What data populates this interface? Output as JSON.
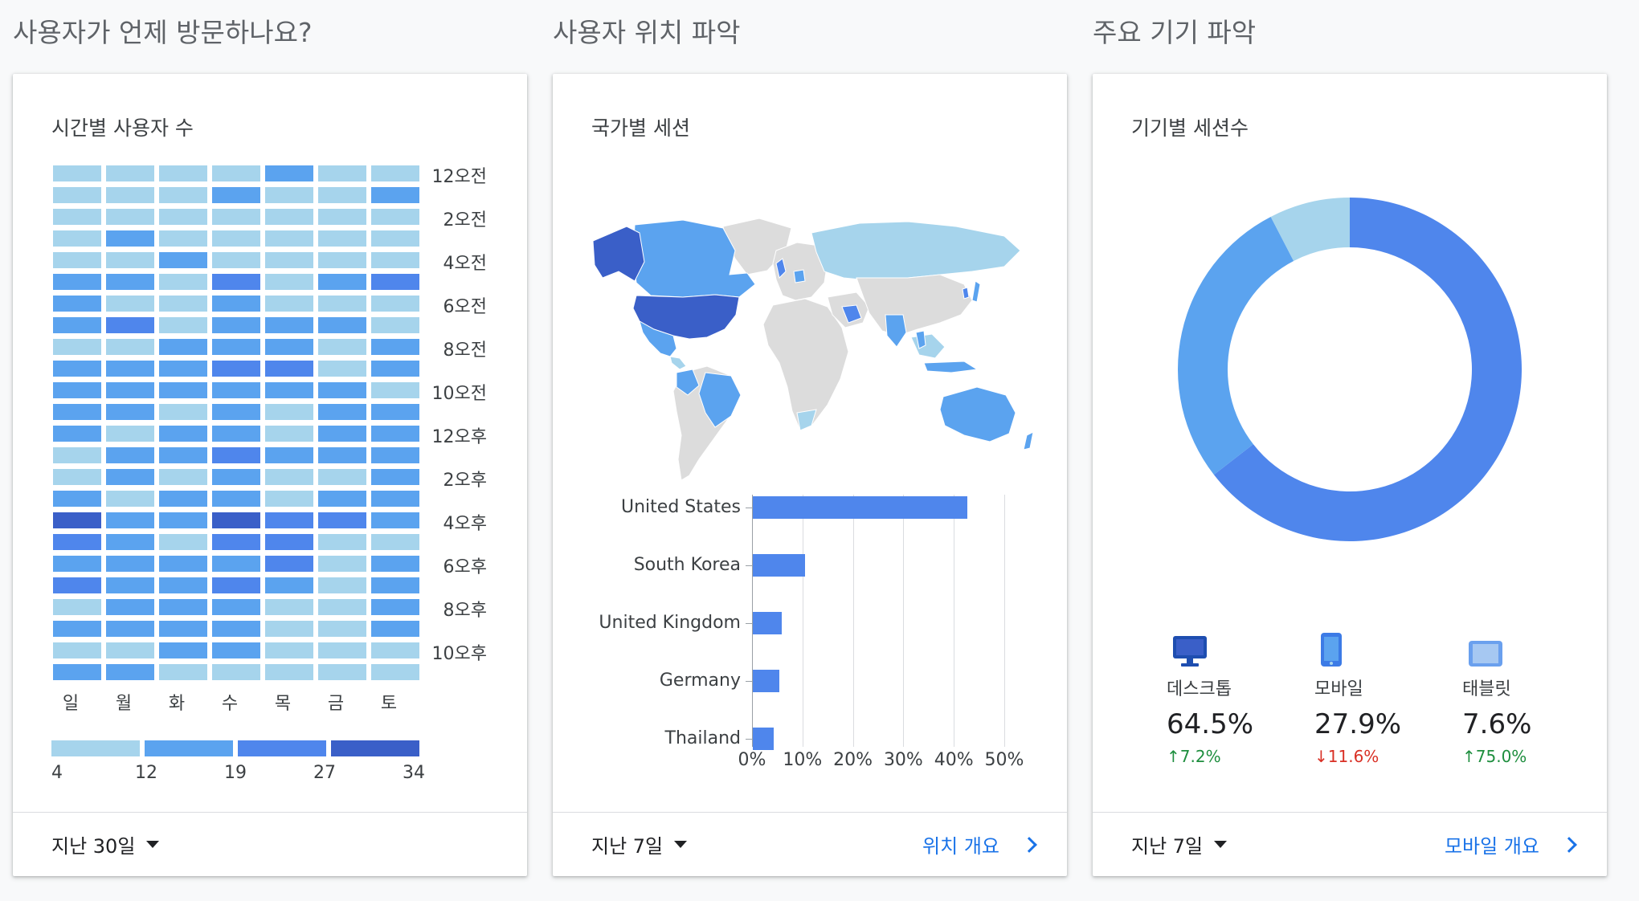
{
  "sections": {
    "when_title": "사용자가 언제 방문하나요?",
    "where_title": "사용자 위치 파악",
    "device_title": "주요 기기 파악"
  },
  "colors": {
    "accent": "#1a73e8",
    "level1": "#a6d4ec",
    "level2": "#5ba3ef",
    "level3": "#4f86ec",
    "level4": "#3a5fc8",
    "gray": "#dcdcdc"
  },
  "heatmap_card": {
    "title": "시간별 사용자 수",
    "hour_labels": [
      "12오전",
      "2오전",
      "4오전",
      "6오전",
      "8오전",
      "10오전",
      "12오후",
      "2오후",
      "4오후",
      "6오후",
      "8오후",
      "10오후"
    ],
    "day_labels": [
      "일",
      "월",
      "화",
      "수",
      "목",
      "금",
      "토"
    ],
    "legend_labels": [
      "4",
      "12",
      "19",
      "27",
      "34"
    ],
    "grid_levels": [
      [
        1,
        1,
        1,
        1,
        2,
        1,
        1
      ],
      [
        1,
        1,
        1,
        2,
        1,
        1,
        2
      ],
      [
        1,
        1,
        1,
        1,
        1,
        1,
        1
      ],
      [
        1,
        2,
        1,
        1,
        1,
        1,
        1
      ],
      [
        1,
        1,
        2,
        1,
        1,
        1,
        1
      ],
      [
        2,
        2,
        1,
        3,
        1,
        2,
        3
      ],
      [
        2,
        1,
        1,
        2,
        1,
        1,
        1
      ],
      [
        2,
        3,
        1,
        2,
        2,
        2,
        1
      ],
      [
        1,
        1,
        2,
        2,
        2,
        1,
        2
      ],
      [
        2,
        2,
        2,
        3,
        3,
        1,
        2
      ],
      [
        2,
        2,
        2,
        2,
        2,
        2,
        1
      ],
      [
        2,
        2,
        1,
        2,
        1,
        2,
        2
      ],
      [
        2,
        1,
        2,
        2,
        1,
        2,
        2
      ],
      [
        1,
        2,
        2,
        3,
        2,
        2,
        2
      ],
      [
        1,
        2,
        1,
        2,
        1,
        1,
        2
      ],
      [
        2,
        1,
        2,
        2,
        1,
        2,
        2
      ],
      [
        4,
        2,
        2,
        4,
        3,
        3,
        2
      ],
      [
        3,
        2,
        1,
        3,
        3,
        1,
        1
      ],
      [
        2,
        2,
        2,
        2,
        3,
        1,
        2
      ],
      [
        3,
        2,
        2,
        3,
        2,
        1,
        2
      ],
      [
        1,
        2,
        2,
        2,
        1,
        1,
        2
      ],
      [
        2,
        2,
        2,
        2,
        1,
        1,
        2
      ],
      [
        1,
        1,
        2,
        2,
        1,
        1,
        1
      ],
      [
        2,
        2,
        1,
        1,
        1,
        1,
        1
      ]
    ],
    "range_label": "지난 30일"
  },
  "location_card": {
    "title": "국가별 세션",
    "range_label": "지난 7일",
    "link_label": "위치 개요",
    "chart_data": {
      "type": "bar",
      "orientation": "horizontal",
      "categories": [
        "United States",
        "South Korea",
        "United Kingdom",
        "Germany",
        "Thailand"
      ],
      "values": [
        42.5,
        10.3,
        5.8,
        5.3,
        4.1
      ],
      "xlim": [
        0,
        50
      ],
      "tick_labels": [
        "0%",
        "10%",
        "20%",
        "30%",
        "40%",
        "50%"
      ],
      "grid": true
    }
  },
  "device_card": {
    "title": "기기별 세션수",
    "range_label": "지난 7일",
    "link_label": "모바일 개요",
    "chart_data": {
      "type": "pie",
      "donut": true,
      "categories": [
        "데스크톱",
        "모바일",
        "태블릿"
      ],
      "values": [
        64.5,
        27.9,
        7.6
      ],
      "colors": [
        "#4f86ec",
        "#5ba3ef",
        "#a6d4ec"
      ]
    },
    "devices": [
      {
        "name": "데스크톱",
        "pct": "64.5%",
        "change": "7.2%",
        "direction": "up",
        "icon": "desktop-icon"
      },
      {
        "name": "모바일",
        "pct": "27.9%",
        "change": "11.6%",
        "direction": "down",
        "icon": "mobile-icon"
      },
      {
        "name": "태블릿",
        "pct": "7.6%",
        "change": "75.0%",
        "direction": "up",
        "icon": "tablet-icon"
      }
    ]
  }
}
